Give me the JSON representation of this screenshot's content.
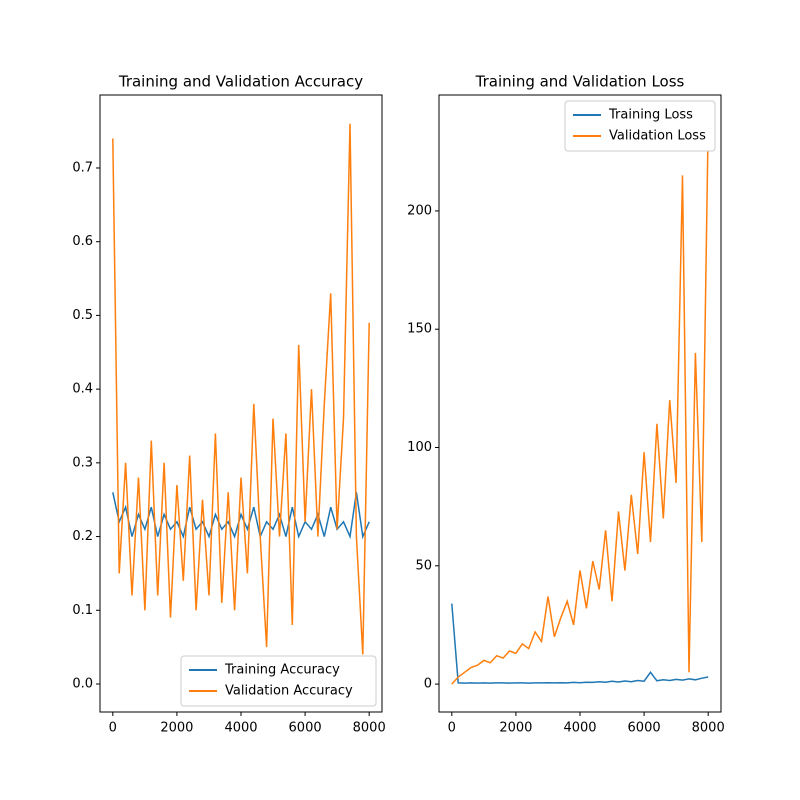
{
  "chart_data": [
    {
      "type": "line",
      "title": "Training and Validation Accuracy",
      "x": [
        0,
        200,
        400,
        600,
        800,
        1000,
        1200,
        1400,
        1600,
        1800,
        2000,
        2200,
        2400,
        2600,
        2800,
        3000,
        3200,
        3400,
        3600,
        3800,
        4000,
        4200,
        4400,
        4600,
        4800,
        5000,
        5200,
        5400,
        5600,
        5800,
        6000,
        6200,
        6400,
        6600,
        6800,
        7000,
        7200,
        7400,
        7600,
        7800,
        8000
      ],
      "series": [
        {
          "name": "Training Accuracy",
          "color": "#1f77b4",
          "values": [
            0.26,
            0.22,
            0.24,
            0.2,
            0.23,
            0.21,
            0.24,
            0.2,
            0.23,
            0.21,
            0.22,
            0.2,
            0.24,
            0.21,
            0.22,
            0.2,
            0.23,
            0.21,
            0.22,
            0.2,
            0.23,
            0.21,
            0.24,
            0.2,
            0.22,
            0.21,
            0.23,
            0.2,
            0.24,
            0.2,
            0.22,
            0.21,
            0.23,
            0.2,
            0.24,
            0.21,
            0.22,
            0.2,
            0.26,
            0.2,
            0.22
          ]
        },
        {
          "name": "Validation Accuracy",
          "color": "#ff7f0e",
          "values": [
            0.74,
            0.15,
            0.3,
            0.12,
            0.28,
            0.1,
            0.33,
            0.12,
            0.3,
            0.09,
            0.27,
            0.14,
            0.31,
            0.1,
            0.25,
            0.12,
            0.34,
            0.11,
            0.26,
            0.1,
            0.28,
            0.15,
            0.38,
            0.2,
            0.05,
            0.36,
            0.2,
            0.34,
            0.08,
            0.46,
            0.22,
            0.4,
            0.2,
            0.38,
            0.53,
            0.21,
            0.36,
            0.76,
            0.2,
            0.04,
            0.49
          ]
        }
      ],
      "xlim": [
        -400,
        8400
      ],
      "ylim": [
        -0.038,
        0.799
      ],
      "xticks": [
        0,
        2000,
        4000,
        6000,
        8000
      ],
      "yticks": [
        {
          "value": 0,
          "label": "0.0"
        },
        0.1,
        0.2,
        0.3,
        0.4,
        0.5,
        0.6,
        0.7
      ],
      "legend": "lower right"
    },
    {
      "type": "line",
      "title": "Training and Validation Loss",
      "x": [
        0,
        200,
        400,
        600,
        800,
        1000,
        1200,
        1400,
        1600,
        1800,
        2000,
        2200,
        2400,
        2600,
        2800,
        3000,
        3200,
        3400,
        3600,
        3800,
        4000,
        4200,
        4400,
        4600,
        4800,
        5000,
        5200,
        5400,
        5600,
        5800,
        6000,
        6200,
        6400,
        6600,
        6800,
        7000,
        7200,
        7400,
        7600,
        7800,
        8000
      ],
      "series": [
        {
          "name": "Training Loss",
          "color": "#1f77b4",
          "values": [
            34,
            0.5,
            0.4,
            0.5,
            0.4,
            0.5,
            0.4,
            0.5,
            0.5,
            0.4,
            0.5,
            0.5,
            0.4,
            0.5,
            0.5,
            0.6,
            0.5,
            0.6,
            0.5,
            0.7,
            0.6,
            0.8,
            0.7,
            1,
            0.8,
            1.2,
            0.9,
            1.3,
            1,
            1.5,
            1.2,
            5,
            1.4,
            1.8,
            1.5,
            2,
            1.7,
            2.2,
            1.8,
            2.5,
            3
          ]
        },
        {
          "name": "Validation Loss",
          "color": "#ff7f0e",
          "values": [
            0,
            3,
            5,
            7,
            8,
            10,
            9,
            12,
            11,
            14,
            13,
            17,
            15,
            22,
            18,
            37,
            20,
            28,
            35,
            25,
            48,
            32,
            52,
            40,
            65,
            35,
            73,
            48,
            80,
            55,
            98,
            60,
            110,
            70,
            120,
            85,
            215,
            5,
            140,
            60,
            237
          ]
        }
      ],
      "xlim": [
        -400,
        8400
      ],
      "ylim": [
        -11.8,
        249
      ],
      "xticks": [
        0,
        2000,
        4000,
        6000,
        8000
      ],
      "yticks": [
        0,
        50,
        100,
        150,
        200
      ],
      "legend": "upper right"
    }
  ]
}
